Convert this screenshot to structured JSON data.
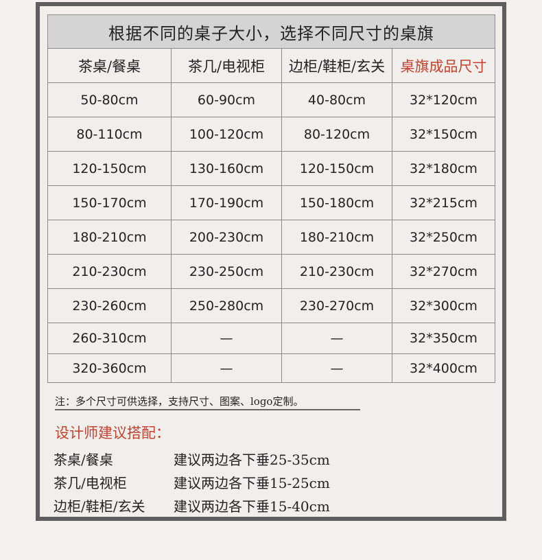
{
  "title": "根据不同的桌子大小，选择不同尺寸的桌旗",
  "headers": [
    "茶桌/餐桌",
    "茶几/电视柜",
    "边柜/鞋柜/玄关",
    "桌旗成品尺寸"
  ],
  "rows": [
    [
      "50-80cm",
      "60-90cm",
      "40-80cm",
      "32*120cm"
    ],
    [
      "80-110cm",
      "100-120cm",
      "80-120cm",
      "32*150cm"
    ],
    [
      "120-150cm",
      "130-160cm",
      "120-150cm",
      "32*180cm"
    ],
    [
      "150-170cm",
      "170-190cm",
      "150-180cm",
      "32*215cm"
    ],
    [
      "180-210cm",
      "200-230cm",
      "180-210cm",
      "32*250cm"
    ],
    [
      "210-230cm",
      "230-250cm",
      "210-230cm",
      "32*270cm"
    ],
    [
      "230-260cm",
      "250-280cm",
      "230-270cm",
      "32*300cm"
    ],
    [
      "260-310cm",
      "—",
      "—",
      "32*350cm"
    ],
    [
      "320-360cm",
      "—",
      "—",
      "32*400cm"
    ]
  ],
  "note": "注：多个尺寸可供选择，支持尺寸、图案、logo定制。",
  "designer_title": "设计师建议搭配：",
  "suggestions": [
    {
      "type": "茶桌/餐桌",
      "text": "建议两边各下垂25-35cm"
    },
    {
      "type": "茶几/电视柜",
      "text": "建议两边各下垂15-25cm"
    },
    {
      "type": "边柜/鞋柜/玄关",
      "text": "建议两边各下垂15-40cm"
    }
  ],
  "colors": {
    "accent": "#c8412f",
    "frame": "#5e5e5e",
    "title_bg": "#d4d4d4"
  }
}
